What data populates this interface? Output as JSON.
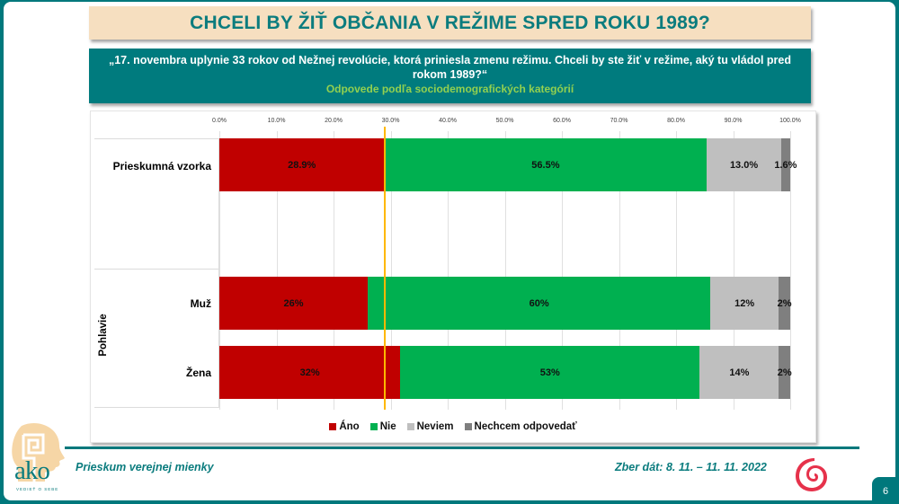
{
  "slide": {
    "title": "CHCELI BY ŽIŤ OBČANIA V REŽIME SPRED ROKU 1989?",
    "question": "„17. novembra uplynie 33 rokov od Nežnej revolúcie, ktorá priniesla zmenu režimu. Chceli by ste žiť v režime, aký tu vládol pred rokom 1989?“",
    "subtitle": "Odpovede podľa sociodemografických kategórií",
    "footer_left": "Prieskum verejnej mienky",
    "footer_right": "Zber dát: 8. 11. – 11. 11. 2022",
    "page_number": "6",
    "logo_text": "ako",
    "logo_tagline": "VEDIEŤ O SEBE"
  },
  "colors": {
    "teal": "#00787c",
    "title_bg": "#f6dfc0",
    "title_text": "#0b7c7e",
    "subtitle_green": "#92d050",
    "ano": "#c00000",
    "nie": "#00b050",
    "neviem": "#bfbfbf",
    "nechcem": "#7f7f7f",
    "reference_line": "#ffb800"
  },
  "chart_data": {
    "type": "bar",
    "orientation": "horizontal-stacked-100",
    "title": "",
    "x_ticks": [
      "0.0%",
      "10.0%",
      "20.0%",
      "30.0%",
      "40.0%",
      "50.0%",
      "60.0%",
      "70.0%",
      "80.0%",
      "90.0%",
      "100.0%"
    ],
    "xlim": [
      0,
      100
    ],
    "grid": true,
    "legend_position": "bottom",
    "categories": [
      "Prieskumná vzorka",
      "Muž",
      "Žena"
    ],
    "groups": [
      {
        "label": "",
        "categories": [
          "Prieskumná vzorka"
        ]
      },
      {
        "label": "Pohlavie",
        "categories": [
          "Muž",
          "Žena"
        ]
      }
    ],
    "series": [
      {
        "name": "Áno",
        "values": [
          28.9,
          26,
          32
        ],
        "labels": [
          "28.9%",
          "26%",
          "32%"
        ]
      },
      {
        "name": "Nie",
        "values": [
          56.5,
          60,
          53
        ],
        "labels": [
          "56.5%",
          "60%",
          "53%"
        ]
      },
      {
        "name": "Neviem",
        "values": [
          13.0,
          12,
          14
        ],
        "labels": [
          "13.0%",
          "12%",
          "14%"
        ]
      },
      {
        "name": "Nechcem odpovedať",
        "values": [
          1.6,
          2,
          2
        ],
        "labels": [
          "1.6%",
          "2%",
          "2%"
        ]
      }
    ],
    "reference_line": {
      "value": 28.9,
      "color": "#ffb800"
    }
  }
}
